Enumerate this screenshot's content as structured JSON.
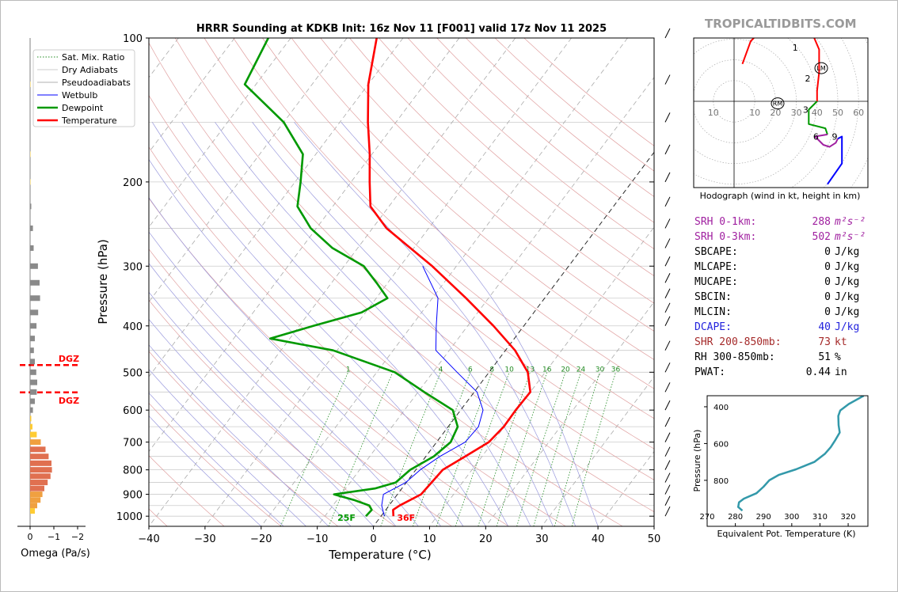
{
  "title": "HRRR Sounding at KDKB Init: 16z Nov 11 [F001] valid 17z Nov 11 2025",
  "brand": "TROPICALTIDBITS.COM",
  "colors": {
    "temperature": "#ff0000",
    "dewpoint": "#009900",
    "wetbulb": "#0000ff",
    "sat_mix": "#228b22",
    "dry_adiabat": "#b22222",
    "pseudoadiabat": "#0000cc",
    "srh": "#a020a0",
    "dcape": "#2222dd",
    "shr": "#a52a2a",
    "theta_e": "#3399aa"
  },
  "chart_data": [
    {
      "type": "line",
      "name": "skewt",
      "title": "HRRR Sounding at KDKB Init: 16z Nov 11 [F001] valid 17z Nov 11 2025",
      "xlabel": "Temperature (°C)",
      "ylabel": "Pressure (hPa)",
      "xlim": [
        -40,
        50
      ],
      "ylim": [
        1050,
        100
      ],
      "log_y": true,
      "skew": true,
      "grid": true,
      "legend_position": "top-left",
      "x_ticks": [
        "−40",
        "−30",
        "−20",
        "−10",
        "0",
        "10",
        "20",
        "30",
        "40",
        "50"
      ],
      "y_ticks": [
        "100",
        "200",
        "300",
        "400",
        "500",
        "600",
        "700",
        "800",
        "900",
        "1000"
      ],
      "legend": [
        "Sat. Mix. Ratio",
        "Dry Adiabats",
        "Pseudoadiabats",
        "Wetbulb",
        "Dewpoint",
        "Temperature"
      ],
      "mix_ratio_labels": [
        "1",
        "4",
        "6",
        "8",
        "10",
        "13",
        "16",
        "20",
        "24",
        "30",
        "36"
      ],
      "series": [
        {
          "name": "Temperature",
          "points": [
            [
              1000,
              2.2
            ],
            [
              970,
              1.3
            ],
            [
              950,
              1.9
            ],
            [
              900,
              4.2
            ],
            [
              850,
              4.5
            ],
            [
              800,
              4.8
            ],
            [
              750,
              7.0
            ],
            [
              700,
              9.3
            ],
            [
              650,
              9.9
            ],
            [
              600,
              9.8
            ],
            [
              550,
              10.0
            ],
            [
              500,
              6.9
            ],
            [
              450,
              1.7
            ],
            [
              400,
              -5.4
            ],
            [
              350,
              -14.0
            ],
            [
              300,
              -24.3
            ],
            [
              250,
              -37.5
            ],
            [
              225,
              -43.3
            ],
            [
              200,
              -46.7
            ],
            [
              175,
              -50.4
            ],
            [
              150,
              -55.0
            ],
            [
              125,
              -60.0
            ],
            [
              100,
              -64.7
            ]
          ]
        },
        {
          "name": "Dewpoint",
          "points": [
            [
              1000,
              -2.7
            ],
            [
              970,
              -2.5
            ],
            [
              950,
              -3.5
            ],
            [
              925,
              -7.0
            ],
            [
              900,
              -11.3
            ],
            [
              875,
              -4.8
            ],
            [
              850,
              -1.9
            ],
            [
              800,
              -1.0
            ],
            [
              750,
              1.4
            ],
            [
              700,
              2.5
            ],
            [
              650,
              1.7
            ],
            [
              600,
              -1.4
            ],
            [
              550,
              -8.9
            ],
            [
              500,
              -16.8
            ],
            [
              450,
              -30.7
            ],
            [
              425,
              -43.5
            ],
            [
              400,
              -37.5
            ],
            [
              375,
              -30.7
            ],
            [
              350,
              -28.0
            ],
            [
              325,
              -32.0
            ],
            [
              300,
              -36.5
            ],
            [
              275,
              -44.5
            ],
            [
              250,
              -51.0
            ],
            [
              225,
              -56.3
            ],
            [
              200,
              -59.0
            ],
            [
              175,
              -62.3
            ],
            [
              150,
              -70.0
            ],
            [
              125,
              -82.0
            ],
            [
              100,
              -84.0
            ]
          ]
        },
        {
          "name": "Wetbulb",
          "points": [
            [
              1000,
              0.6
            ],
            [
              950,
              -1.3
            ],
            [
              900,
              -2.5
            ],
            [
              850,
              -0.1
            ],
            [
              800,
              0.8
            ],
            [
              750,
              2.5
            ],
            [
              700,
              5.1
            ],
            [
              650,
              5.4
            ],
            [
              600,
              4.0
            ],
            [
              550,
              0.5
            ],
            [
              500,
              -5.7
            ],
            [
              450,
              -12.4
            ],
            [
              400,
              -15.6
            ],
            [
              350,
              -19.0
            ],
            [
              300,
              -26.0
            ]
          ]
        }
      ],
      "annotations": [
        {
          "text": "DGZ",
          "p": 483
        },
        {
          "text": "DGZ",
          "p": 551
        },
        {
          "text": "25F",
          "t": -3.9,
          "p": 1000
        },
        {
          "text": "36F",
          "t": 2.2,
          "p": 1000
        }
      ],
      "wind_barb_pressures": [
        100,
        125,
        150,
        175,
        200,
        225,
        250,
        275,
        300,
        325,
        350,
        375,
        400,
        450,
        500,
        550,
        600,
        650,
        700,
        750,
        800,
        850,
        900,
        950,
        1000
      ]
    },
    {
      "type": "bar",
      "name": "omega",
      "xlabel": "Omega (Pa/s)",
      "x_ticks": [
        "0",
        "−1",
        "−2"
      ],
      "xlim": [
        0,
        -2
      ],
      "bars": [
        {
          "p": 125,
          "v": 0.02
        },
        {
          "p": 175,
          "v": 0.02
        },
        {
          "p": 200,
          "v": 0.02
        },
        {
          "p": 225,
          "v": 0.05
        },
        {
          "p": 250,
          "v": 0.12
        },
        {
          "p": 275,
          "v": 0.15
        },
        {
          "p": 300,
          "v": 0.33
        },
        {
          "p": 325,
          "v": 0.4
        },
        {
          "p": 350,
          "v": 0.42
        },
        {
          "p": 375,
          "v": 0.34
        },
        {
          "p": 400,
          "v": 0.27
        },
        {
          "p": 425,
          "v": 0.2
        },
        {
          "p": 450,
          "v": 0.16
        },
        {
          "p": 475,
          "v": 0.2
        },
        {
          "p": 500,
          "v": 0.26
        },
        {
          "p": 525,
          "v": 0.3
        },
        {
          "p": 550,
          "v": 0.28
        },
        {
          "p": 575,
          "v": 0.2
        },
        {
          "p": 600,
          "v": 0.12
        },
        {
          "p": 625,
          "v": -0.05
        },
        {
          "p": 650,
          "v": -0.1
        },
        {
          "p": 675,
          "v": -0.28
        },
        {
          "p": 700,
          "v": -0.45
        },
        {
          "p": 725,
          "v": -0.65
        },
        {
          "p": 750,
          "v": -0.78
        },
        {
          "p": 775,
          "v": -0.9
        },
        {
          "p": 800,
          "v": -0.92
        },
        {
          "p": 825,
          "v": -0.86
        },
        {
          "p": 850,
          "v": -0.74
        },
        {
          "p": 875,
          "v": -0.6
        },
        {
          "p": 900,
          "v": -0.52
        },
        {
          "p": 925,
          "v": -0.44
        },
        {
          "p": 950,
          "v": -0.3
        },
        {
          "p": 975,
          "v": -0.2
        }
      ]
    },
    {
      "type": "line",
      "name": "hodograph",
      "title": "",
      "xlabel": "Hodograph (wind in kt, height in km)",
      "ring_labels_left": [
        "10"
      ],
      "ring_labels_right": [
        "10",
        "20",
        "30",
        "40",
        "50",
        "60"
      ],
      "height_labels": [
        "1",
        "2",
        "3",
        "6",
        "9"
      ],
      "storm_motion_labels": [
        "LM",
        "RM"
      ],
      "segments": [
        {
          "color": "#ff0000",
          "points": [
            [
              4,
              18
            ],
            [
              8,
              29
            ],
            [
              15,
              36
            ],
            [
              25,
              40
            ],
            [
              33,
              37
            ],
            [
              38,
              32
            ],
            [
              41,
              25
            ],
            [
              41,
              14
            ],
            [
              40,
              5
            ],
            [
              40,
              0
            ]
          ]
        },
        {
          "color": "#009900",
          "points": [
            [
              40,
              0
            ],
            [
              36,
              -4
            ],
            [
              36,
              -11
            ],
            [
              44,
              -13
            ],
            [
              45,
              -16
            ]
          ]
        },
        {
          "color": "#a020a0",
          "points": [
            [
              45,
              -16
            ],
            [
              39,
              -17
            ],
            [
              43,
              -21
            ],
            [
              46,
              -22
            ],
            [
              49,
              -20
            ],
            [
              50,
              -18
            ]
          ]
        },
        {
          "color": "#0000ff",
          "points": [
            [
              50,
              -18
            ],
            [
              52,
              -17
            ],
            [
              52,
              -30
            ],
            [
              45,
              -40
            ]
          ]
        }
      ],
      "lm": [
        42,
        16
      ],
      "rm": [
        21,
        -1
      ]
    },
    {
      "type": "line",
      "name": "theta_e",
      "xlabel": "Equivalent Pot. Temperature (K)",
      "ylabel": "Pressure (hPa)",
      "xlim": [
        270,
        327
      ],
      "ylim": [
        1050,
        340
      ],
      "x_ticks": [
        "270",
        "280",
        "290",
        "300",
        "310",
        "320"
      ],
      "y_ticks": [
        "400",
        "600",
        "800"
      ],
      "series": [
        {
          "name": "theta-e",
          "points": [
            [
              325.5,
              340
            ],
            [
              320.2,
              385
            ],
            [
              317.2,
              420
            ],
            [
              316.5,
              450
            ],
            [
              316.6,
              500
            ],
            [
              317.0,
              540
            ],
            [
              315.5,
              580
            ],
            [
              313.8,
              620
            ],
            [
              311.8,
              655
            ],
            [
              308.0,
              700
            ],
            [
              301.5,
              740
            ],
            [
              295.5,
              770
            ],
            [
              292.0,
              800
            ],
            [
              290.0,
              835
            ],
            [
              287.5,
              870
            ],
            [
              283.0,
              900
            ],
            [
              281.3,
              920
            ],
            [
              281.0,
              945
            ],
            [
              282.5,
              965
            ]
          ]
        }
      ]
    }
  ],
  "params": [
    {
      "label": "SRH 0-1km:",
      "value": "288",
      "unit": "m²s⁻²",
      "color": "#a020a0"
    },
    {
      "label": "SRH 0-3km:",
      "value": "502",
      "unit": "m²s⁻²",
      "color": "#a020a0"
    },
    {
      "label": "SBCAPE:",
      "value": "0",
      "unit": "J/kg",
      "color": "#000000"
    },
    {
      "label": "MLCAPE:",
      "value": "0",
      "unit": "J/kg",
      "color": "#000000"
    },
    {
      "label": "MUCAPE:",
      "value": "0",
      "unit": "J/kg",
      "color": "#000000"
    },
    {
      "label": "SBCIN:",
      "value": "0",
      "unit": "J/kg",
      "color": "#000000"
    },
    {
      "label": "MLCIN:",
      "value": "0",
      "unit": "J/kg",
      "color": "#000000"
    },
    {
      "label": "DCAPE:",
      "value": "40",
      "unit": "J/kg",
      "color": "#2222dd"
    },
    {
      "label": "SHR 200-850mb:",
      "value": "73",
      "unit": "kt",
      "color": "#a52a2a"
    },
    {
      "label": "RH 300-850mb:",
      "value": "51",
      "unit": "%",
      "color": "#000000"
    },
    {
      "label": "PWAT:",
      "value": "0.44",
      "unit": "in",
      "color": "#000000"
    }
  ]
}
